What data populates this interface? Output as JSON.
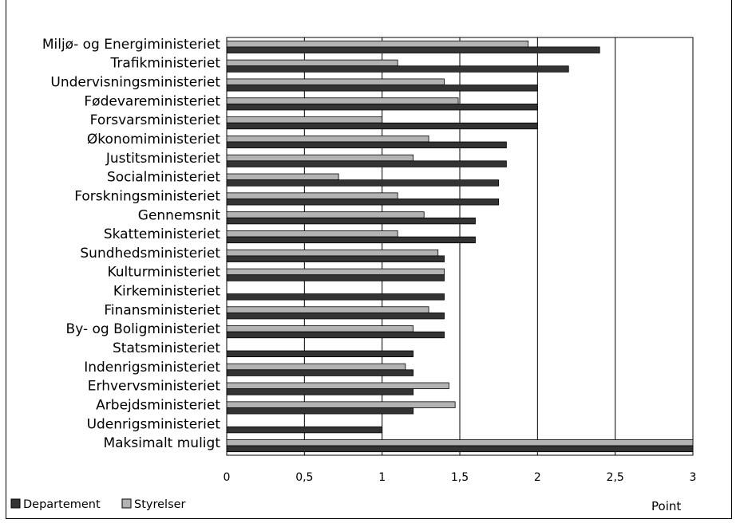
{
  "chart_data": {
    "type": "bar",
    "orientation": "horizontal",
    "categories": [
      "Miljø- og Energiministeriet",
      "Trafikministeriet",
      "Undervisningsministeriet",
      "Fødevareministeriet",
      "Forsvarsministeriet",
      "Økonomiministeriet",
      "Justitsministeriet",
      "Socialministeriet",
      "Forskningsministeriet",
      "Gennemsnit",
      "Skatteministeriet",
      "Sundhedsministeriet",
      "Kulturministeriet",
      "Kirkeministeriet",
      "Finansministeriet",
      "By- og Boligministeriet",
      "Statsministeriet",
      "Indenrigsministeriet",
      "Erhvervsministeriet",
      "Arbejdsministeriet",
      "Udenrigsministeriet",
      "Maksimalt muligt"
    ],
    "series": [
      {
        "name": "Departement",
        "color": "#333333",
        "values": [
          2.4,
          2.2,
          2.0,
          2.0,
          2.0,
          1.8,
          1.8,
          1.75,
          1.75,
          1.6,
          1.6,
          1.4,
          1.4,
          1.4,
          1.4,
          1.4,
          1.2,
          1.2,
          1.2,
          1.2,
          1.0,
          3.0
        ]
      },
      {
        "name": "Styrelser",
        "color": "#b3b3b3",
        "values": [
          1.94,
          1.1,
          1.4,
          1.49,
          1.0,
          1.3,
          1.2,
          0.72,
          1.1,
          1.27,
          1.1,
          1.36,
          1.4,
          null,
          1.3,
          1.2,
          null,
          1.15,
          1.43,
          1.47,
          null,
          3.0
        ]
      }
    ],
    "x_ticks": [
      "0",
      "0,5",
      "1",
      "1,5",
      "2",
      "2,5",
      "3"
    ],
    "xlim": [
      0,
      3
    ],
    "xlabel": "Point",
    "grid": "vertical",
    "legend_position": "bottom-left"
  }
}
